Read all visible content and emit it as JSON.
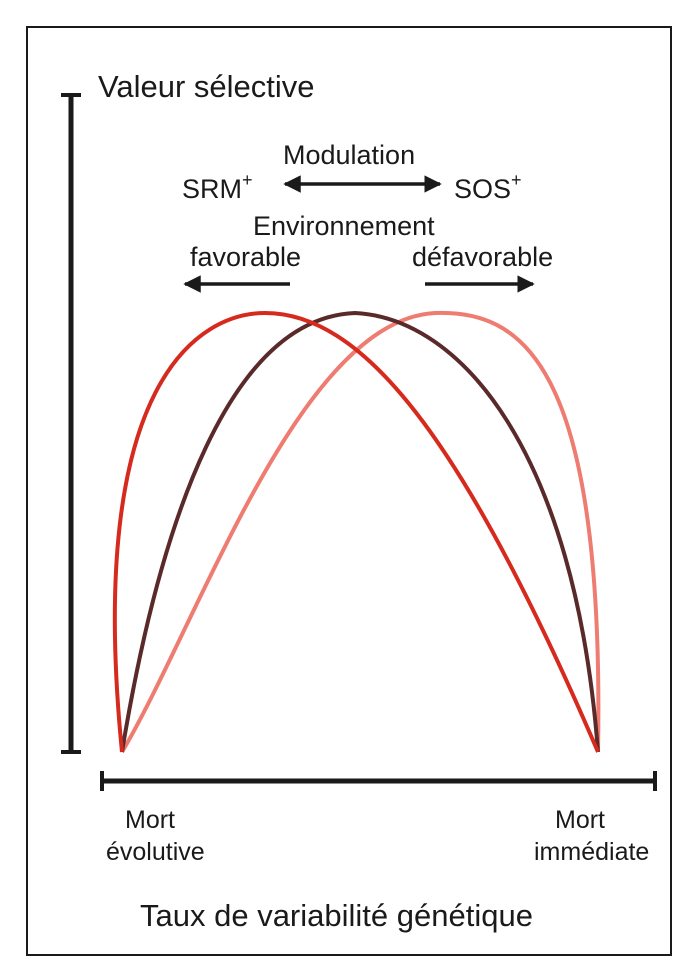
{
  "y_axis_title": "Valeur sélective",
  "x_axis_title": "Taux de variabilité génétique",
  "modulation_label": "Modulation",
  "srm_label": "SRM",
  "sos_label": "SOS",
  "superscript": "+",
  "environment_label": "Environnement",
  "favorable_label": "favorable",
  "defavorable_label": "défavorable",
  "left_end_line1": "Mort",
  "left_end_line2": "évolutive",
  "right_end_line1": "Mort",
  "right_end_line2": "immédiate",
  "curves": [
    {
      "name": "",
      "color": "#d62a1e"
    },
    {
      "name": "",
      "color": "#5a2a2a"
    },
    {
      "name": "",
      "color": "#ee7c70"
    }
  ],
  "colors": {
    "axis": "#1a1a1a",
    "frame": "#1a1a1a",
    "background": "#ffffff"
  }
}
